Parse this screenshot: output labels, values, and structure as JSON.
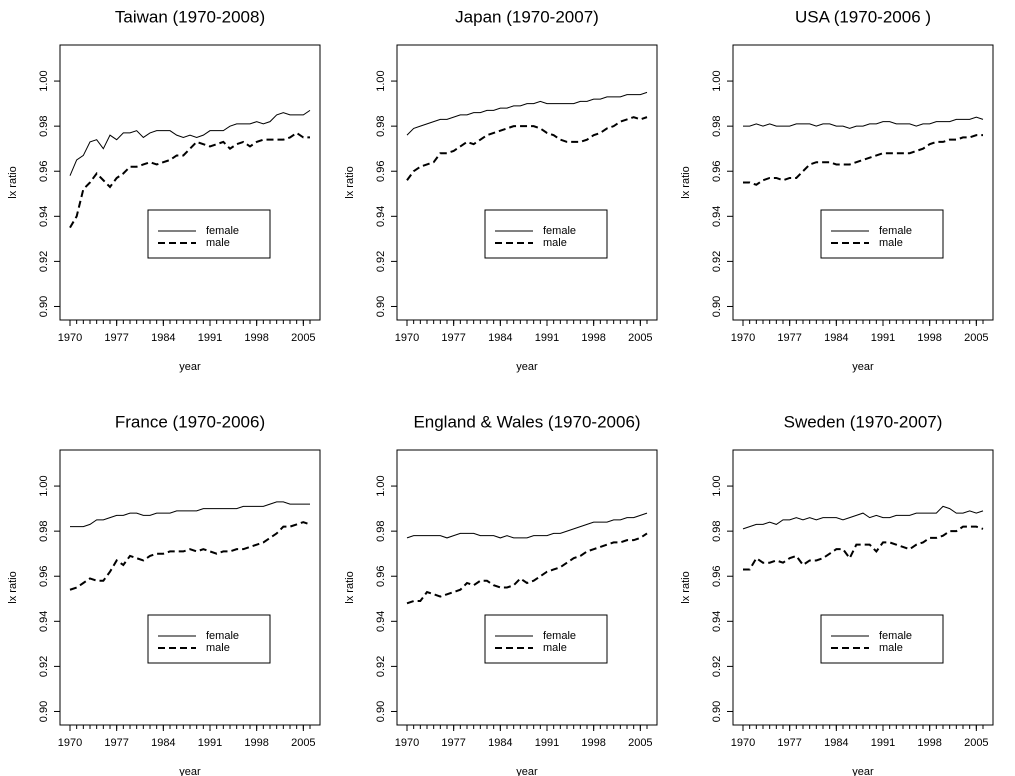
{
  "chart_data": [
    {
      "type": "line",
      "title": "Taiwan (1970-2008)",
      "xlabel": "year",
      "ylabel": "lx ratio",
      "x": [
        1970,
        1971,
        1972,
        1973,
        1974,
        1975,
        1976,
        1977,
        1978,
        1979,
        1980,
        1981,
        1982,
        1983,
        1984,
        1985,
        1986,
        1987,
        1988,
        1989,
        1990,
        1991,
        1992,
        1993,
        1994,
        1995,
        1996,
        1997,
        1998,
        1999,
        2000,
        2001,
        2002,
        2003,
        2004,
        2005,
        2006
      ],
      "xlim": [
        1968.5,
        2007.5
      ],
      "xticks": [
        1970,
        1977,
        1984,
        1991,
        1998,
        2005
      ],
      "ylim": [
        0.894,
        1.016
      ],
      "yticks": [
        {
          "value": 0.9,
          "label": "0.90"
        },
        0.92,
        0.94,
        0.96,
        0.98,
        {
          "value": 1.0,
          "label": "1.00"
        }
      ],
      "legend": "inside-middle",
      "series": [
        {
          "name": "female",
          "color": "#000000",
          "line_style": "solid",
          "values": [
            0.958,
            0.965,
            0.967,
            0.973,
            0.974,
            0.97,
            0.976,
            0.974,
            0.977,
            0.977,
            0.978,
            0.975,
            0.977,
            0.978,
            0.978,
            0.978,
            0.976,
            0.975,
            0.976,
            0.975,
            0.976,
            0.978,
            0.978,
            0.978,
            0.98,
            0.981,
            0.981,
            0.981,
            0.982,
            0.981,
            0.982,
            0.985,
            0.986,
            0.985,
            0.985,
            0.985,
            0.987
          ]
        },
        {
          "name": "male",
          "color": "#000000",
          "line_style": "dashed",
          "values": [
            0.935,
            0.94,
            0.952,
            0.955,
            0.959,
            0.956,
            0.953,
            0.957,
            0.959,
            0.962,
            0.962,
            0.963,
            0.964,
            0.963,
            0.964,
            0.965,
            0.967,
            0.967,
            0.97,
            0.973,
            0.972,
            0.971,
            0.972,
            0.973,
            0.97,
            0.972,
            0.973,
            0.971,
            0.973,
            0.974,
            0.974,
            0.974,
            0.974,
            0.975,
            0.977,
            0.975,
            0.975
          ]
        }
      ]
    },
    {
      "type": "line",
      "title": "Japan (1970-2007)",
      "xlabel": "year",
      "ylabel": "lx ratio",
      "x": [
        1970,
        1971,
        1972,
        1973,
        1974,
        1975,
        1976,
        1977,
        1978,
        1979,
        1980,
        1981,
        1982,
        1983,
        1984,
        1985,
        1986,
        1987,
        1988,
        1989,
        1990,
        1991,
        1992,
        1993,
        1994,
        1995,
        1996,
        1997,
        1998,
        1999,
        2000,
        2001,
        2002,
        2003,
        2004,
        2005,
        2006
      ],
      "xlim": [
        1968.5,
        2007.5
      ],
      "xticks": [
        1970,
        1977,
        1984,
        1991,
        1998,
        2005
      ],
      "ylim": [
        0.894,
        1.016
      ],
      "yticks": [
        {
          "value": 0.9,
          "label": "0.90"
        },
        0.92,
        0.94,
        0.96,
        0.98,
        {
          "value": 1.0,
          "label": "1.00"
        }
      ],
      "legend": "inside-middle",
      "series": [
        {
          "name": "female",
          "color": "#000000",
          "line_style": "solid",
          "values": [
            0.976,
            0.979,
            0.98,
            0.981,
            0.982,
            0.983,
            0.983,
            0.984,
            0.985,
            0.985,
            0.986,
            0.986,
            0.987,
            0.987,
            0.988,
            0.988,
            0.989,
            0.989,
            0.99,
            0.99,
            0.991,
            0.99,
            0.99,
            0.99,
            0.99,
            0.99,
            0.991,
            0.991,
            0.992,
            0.992,
            0.993,
            0.993,
            0.993,
            0.994,
            0.994,
            0.994,
            0.995
          ]
        },
        {
          "name": "male",
          "color": "#000000",
          "line_style": "dashed",
          "values": [
            0.956,
            0.96,
            0.962,
            0.963,
            0.964,
            0.968,
            0.968,
            0.969,
            0.971,
            0.973,
            0.972,
            0.974,
            0.976,
            0.977,
            0.978,
            0.979,
            0.98,
            0.98,
            0.98,
            0.98,
            0.979,
            0.977,
            0.976,
            0.974,
            0.973,
            0.973,
            0.973,
            0.974,
            0.976,
            0.977,
            0.979,
            0.98,
            0.982,
            0.983,
            0.984,
            0.983,
            0.984
          ]
        }
      ]
    },
    {
      "type": "line",
      "title": "USA (1970-2006 )",
      "xlabel": "year",
      "ylabel": "lx ratio",
      "x": [
        1970,
        1971,
        1972,
        1973,
        1974,
        1975,
        1976,
        1977,
        1978,
        1979,
        1980,
        1981,
        1982,
        1983,
        1984,
        1985,
        1986,
        1987,
        1988,
        1989,
        1990,
        1991,
        1992,
        1993,
        1994,
        1995,
        1996,
        1997,
        1998,
        1999,
        2000,
        2001,
        2002,
        2003,
        2004,
        2005,
        2006
      ],
      "xlim": [
        1968.5,
        2007.5
      ],
      "xticks": [
        1970,
        1977,
        1984,
        1991,
        1998,
        2005
      ],
      "ylim": [
        0.894,
        1.016
      ],
      "yticks": [
        {
          "value": 0.9,
          "label": "0.90"
        },
        0.92,
        0.94,
        0.96,
        0.98,
        {
          "value": 1.0,
          "label": "1.00"
        }
      ],
      "legend": "inside-middle",
      "series": [
        {
          "name": "female",
          "color": "#000000",
          "line_style": "solid",
          "values": [
            0.98,
            0.98,
            0.981,
            0.98,
            0.981,
            0.98,
            0.98,
            0.98,
            0.981,
            0.981,
            0.981,
            0.98,
            0.981,
            0.981,
            0.98,
            0.98,
            0.979,
            0.98,
            0.98,
            0.981,
            0.981,
            0.982,
            0.982,
            0.981,
            0.981,
            0.981,
            0.98,
            0.981,
            0.981,
            0.982,
            0.982,
            0.982,
            0.983,
            0.983,
            0.983,
            0.984,
            0.983
          ]
        },
        {
          "name": "male",
          "color": "#000000",
          "line_style": "dashed",
          "values": [
            0.955,
            0.955,
            0.954,
            0.956,
            0.957,
            0.957,
            0.956,
            0.957,
            0.957,
            0.96,
            0.963,
            0.964,
            0.964,
            0.964,
            0.963,
            0.963,
            0.963,
            0.964,
            0.965,
            0.966,
            0.967,
            0.968,
            0.968,
            0.968,
            0.968,
            0.968,
            0.969,
            0.97,
            0.972,
            0.973,
            0.973,
            0.974,
            0.974,
            0.975,
            0.975,
            0.976,
            0.976
          ]
        }
      ]
    },
    {
      "type": "line",
      "title": "France (1970-2006)",
      "xlabel": "year",
      "ylabel": "lx ratio",
      "x": [
        1970,
        1971,
        1972,
        1973,
        1974,
        1975,
        1976,
        1977,
        1978,
        1979,
        1980,
        1981,
        1982,
        1983,
        1984,
        1985,
        1986,
        1987,
        1988,
        1989,
        1990,
        1991,
        1992,
        1993,
        1994,
        1995,
        1996,
        1997,
        1998,
        1999,
        2000,
        2001,
        2002,
        2003,
        2004,
        2005,
        2006
      ],
      "xlim": [
        1968.5,
        2007.5
      ],
      "xticks": [
        1970,
        1977,
        1984,
        1991,
        1998,
        2005
      ],
      "ylim": [
        0.894,
        1.016
      ],
      "yticks": [
        {
          "value": 0.9,
          "label": "0.90"
        },
        0.92,
        0.94,
        0.96,
        0.98,
        {
          "value": 1.0,
          "label": "1.00"
        }
      ],
      "legend": "inside-middle",
      "series": [
        {
          "name": "female",
          "color": "#000000",
          "line_style": "solid",
          "values": [
            0.982,
            0.982,
            0.982,
            0.983,
            0.985,
            0.985,
            0.986,
            0.987,
            0.987,
            0.988,
            0.988,
            0.987,
            0.987,
            0.988,
            0.988,
            0.988,
            0.989,
            0.989,
            0.989,
            0.989,
            0.99,
            0.99,
            0.99,
            0.99,
            0.99,
            0.99,
            0.991,
            0.991,
            0.991,
            0.991,
            0.992,
            0.993,
            0.993,
            0.992,
            0.992,
            0.992,
            0.992
          ]
        },
        {
          "name": "male",
          "color": "#000000",
          "line_style": "dashed",
          "values": [
            0.954,
            0.955,
            0.957,
            0.959,
            0.958,
            0.958,
            0.962,
            0.967,
            0.965,
            0.969,
            0.968,
            0.967,
            0.969,
            0.97,
            0.97,
            0.971,
            0.971,
            0.971,
            0.972,
            0.971,
            0.972,
            0.971,
            0.97,
            0.971,
            0.971,
            0.972,
            0.972,
            0.973,
            0.974,
            0.975,
            0.977,
            0.979,
            0.982,
            0.982,
            0.983,
            0.984,
            0.983
          ]
        }
      ]
    },
    {
      "type": "line",
      "title": "England & Wales (1970-2006)",
      "xlabel": "year",
      "ylabel": "lx ratio",
      "x": [
        1970,
        1971,
        1972,
        1973,
        1974,
        1975,
        1976,
        1977,
        1978,
        1979,
        1980,
        1981,
        1982,
        1983,
        1984,
        1985,
        1986,
        1987,
        1988,
        1989,
        1990,
        1991,
        1992,
        1993,
        1994,
        1995,
        1996,
        1997,
        1998,
        1999,
        2000,
        2001,
        2002,
        2003,
        2004,
        2005,
        2006
      ],
      "xlim": [
        1968.5,
        2007.5
      ],
      "xticks": [
        1970,
        1977,
        1984,
        1991,
        1998,
        2005
      ],
      "ylim": [
        0.894,
        1.016
      ],
      "yticks": [
        {
          "value": 0.9,
          "label": "0.90"
        },
        0.92,
        0.94,
        0.96,
        0.98,
        {
          "value": 1.0,
          "label": "1.00"
        }
      ],
      "legend": "inside-middle",
      "series": [
        {
          "name": "female",
          "color": "#000000",
          "line_style": "solid",
          "values": [
            0.977,
            0.978,
            0.978,
            0.978,
            0.978,
            0.978,
            0.977,
            0.978,
            0.979,
            0.979,
            0.979,
            0.978,
            0.978,
            0.978,
            0.977,
            0.978,
            0.977,
            0.977,
            0.977,
            0.978,
            0.978,
            0.978,
            0.979,
            0.979,
            0.98,
            0.981,
            0.982,
            0.983,
            0.984,
            0.984,
            0.984,
            0.985,
            0.985,
            0.986,
            0.986,
            0.987,
            0.988
          ]
        },
        {
          "name": "male",
          "color": "#000000",
          "line_style": "dashed",
          "values": [
            0.948,
            0.949,
            0.949,
            0.953,
            0.952,
            0.951,
            0.952,
            0.953,
            0.954,
            0.957,
            0.956,
            0.958,
            0.958,
            0.956,
            0.955,
            0.955,
            0.956,
            0.959,
            0.957,
            0.958,
            0.96,
            0.962,
            0.963,
            0.964,
            0.966,
            0.968,
            0.969,
            0.971,
            0.972,
            0.973,
            0.974,
            0.975,
            0.975,
            0.976,
            0.976,
            0.977,
            0.979
          ]
        }
      ]
    },
    {
      "type": "line",
      "title": "Sweden (1970-2007)",
      "xlabel": "year",
      "ylabel": "lx ratio",
      "x": [
        1970,
        1971,
        1972,
        1973,
        1974,
        1975,
        1976,
        1977,
        1978,
        1979,
        1980,
        1981,
        1982,
        1983,
        1984,
        1985,
        1986,
        1987,
        1988,
        1989,
        1990,
        1991,
        1992,
        1993,
        1994,
        1995,
        1996,
        1997,
        1998,
        1999,
        2000,
        2001,
        2002,
        2003,
        2004,
        2005,
        2006
      ],
      "xlim": [
        1968.5,
        2007.5
      ],
      "xticks": [
        1970,
        1977,
        1984,
        1991,
        1998,
        2005
      ],
      "ylim": [
        0.894,
        1.016
      ],
      "yticks": [
        {
          "value": 0.9,
          "label": "0.90"
        },
        0.92,
        0.94,
        0.96,
        0.98,
        {
          "value": 1.0,
          "label": "1.00"
        }
      ],
      "legend": "inside-middle",
      "series": [
        {
          "name": "female",
          "color": "#000000",
          "line_style": "solid",
          "values": [
            0.981,
            0.982,
            0.983,
            0.983,
            0.984,
            0.983,
            0.985,
            0.985,
            0.986,
            0.985,
            0.986,
            0.985,
            0.986,
            0.986,
            0.986,
            0.985,
            0.986,
            0.987,
            0.988,
            0.986,
            0.987,
            0.986,
            0.986,
            0.987,
            0.987,
            0.987,
            0.988,
            0.988,
            0.988,
            0.988,
            0.991,
            0.99,
            0.988,
            0.988,
            0.989,
            0.988,
            0.989
          ]
        },
        {
          "name": "male",
          "color": "#000000",
          "line_style": "dashed",
          "values": [
            0.963,
            0.963,
            0.968,
            0.966,
            0.966,
            0.967,
            0.966,
            0.968,
            0.969,
            0.965,
            0.967,
            0.967,
            0.968,
            0.97,
            0.972,
            0.972,
            0.968,
            0.974,
            0.974,
            0.974,
            0.971,
            0.975,
            0.975,
            0.974,
            0.973,
            0.972,
            0.974,
            0.975,
            0.977,
            0.977,
            0.978,
            0.98,
            0.98,
            0.982,
            0.982,
            0.982,
            0.981
          ]
        }
      ]
    }
  ]
}
